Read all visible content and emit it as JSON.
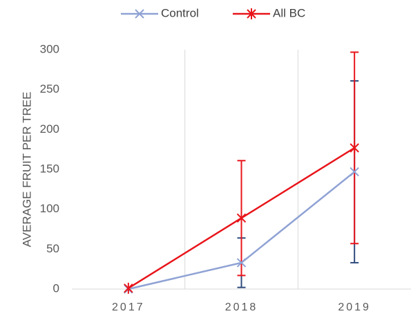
{
  "chart_data": {
    "type": "line",
    "y_label": "AVERAGE FRUIT PER TREE",
    "categories": [
      "2017",
      "2018",
      "2019"
    ],
    "series": [
      {
        "name": "Control",
        "color": "#8fa2d4",
        "error_color": "#2f4b7c",
        "marker": "x",
        "values": [
          0,
          33,
          147
        ],
        "errors": [
          0,
          31,
          114
        ]
      },
      {
        "name": "All BC",
        "color": "#e8141a",
        "error_color": "#e8141a",
        "marker": "star",
        "values": [
          1,
          89,
          177
        ],
        "errors": [
          0,
          72,
          120
        ]
      }
    ],
    "ylim": [
      0,
      300
    ],
    "yticks": [
      0,
      50,
      100,
      150,
      200,
      250,
      300
    ],
    "xgrid": true,
    "legend": "top"
  }
}
